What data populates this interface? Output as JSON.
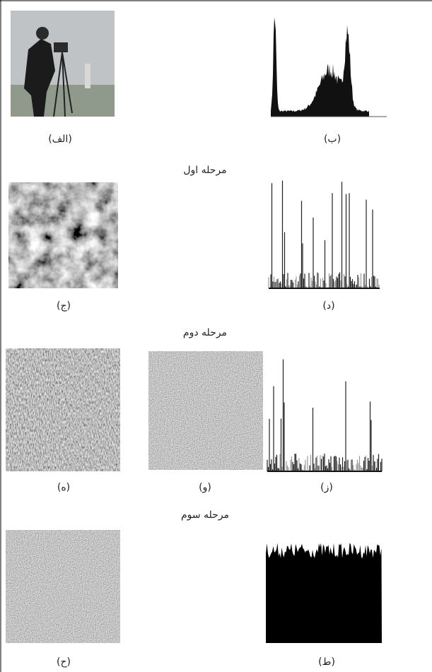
{
  "figure": {
    "captions": [
      "(الف)",
      "(ب)",
      "(ج)",
      "(د)",
      "(ه)",
      "(و)",
      "(ز)",
      "(ح)",
      "(ط)"
    ],
    "stages": [
      "مرحله اول",
      "مرحله دوم",
      "مرحله سوم"
    ]
  }
}
